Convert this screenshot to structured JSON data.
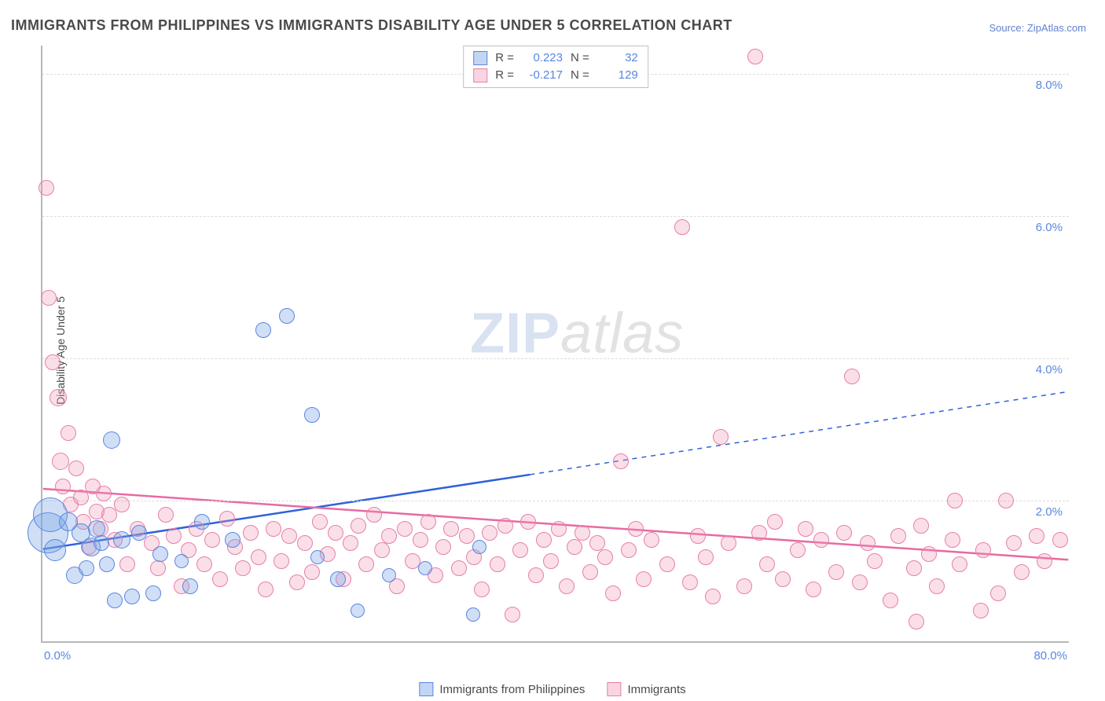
{
  "title": "IMMIGRANTS FROM PHILIPPINES VS IMMIGRANTS DISABILITY AGE UNDER 5 CORRELATION CHART",
  "source_prefix": "Source: ",
  "source": "ZipAtlas.com",
  "ylabel": "Disability Age Under 5",
  "watermark": {
    "a": "ZIP",
    "b": "atlas"
  },
  "chart": {
    "type": "scatter",
    "background_color": "#ffffff",
    "grid_color": "#dcdcdc",
    "axis_color": "#b8b8b8",
    "tick_color": "#5a86e0",
    "tick_fontsize": 15,
    "title_fontsize": 18,
    "xlim": [
      0,
      80
    ],
    "ylim": [
      0,
      8.4
    ],
    "xtick_labels": {
      "min": "0.0%",
      "max": "80.0%"
    },
    "ytick_labels": [
      "2.0%",
      "4.0%",
      "6.0%",
      "8.0%"
    ],
    "ytick_values": [
      2.0,
      4.0,
      6.0,
      8.0
    ],
    "series": [
      {
        "name": "Immigrants from Philippines",
        "color_fill": "rgba(120,164,230,0.35)",
        "color_stroke": "#5a86e0",
        "R": "0.223",
        "N": "32",
        "regression": {
          "x1": 0,
          "y1": 1.3,
          "x2_solid": 38,
          "y2_solid": 2.35,
          "x2_dash": 80,
          "y2_dash": 3.52,
          "stroke": "#2f62d9",
          "width": 2.5,
          "dash": "6 6"
        },
        "points": [
          {
            "x": 0.4,
            "y": 1.55,
            "r": 26
          },
          {
            "x": 0.6,
            "y": 1.8,
            "r": 22
          },
          {
            "x": 1.0,
            "y": 1.3,
            "r": 14
          },
          {
            "x": 2.0,
            "y": 1.7,
            "r": 12
          },
          {
            "x": 2.5,
            "y": 0.95,
            "r": 11
          },
          {
            "x": 3.0,
            "y": 1.55,
            "r": 12
          },
          {
            "x": 3.4,
            "y": 1.05,
            "r": 10
          },
          {
            "x": 3.8,
            "y": 1.35,
            "r": 12
          },
          {
            "x": 4.2,
            "y": 1.6,
            "r": 11
          },
          {
            "x": 4.6,
            "y": 1.4,
            "r": 10
          },
          {
            "x": 5.0,
            "y": 1.1,
            "r": 10
          },
          {
            "x": 5.4,
            "y": 2.85,
            "r": 11
          },
          {
            "x": 5.6,
            "y": 0.6,
            "r": 10
          },
          {
            "x": 6.2,
            "y": 1.45,
            "r": 11
          },
          {
            "x": 7.0,
            "y": 0.65,
            "r": 10
          },
          {
            "x": 7.5,
            "y": 1.55,
            "r": 10
          },
          {
            "x": 8.6,
            "y": 0.7,
            "r": 10
          },
          {
            "x": 9.2,
            "y": 1.25,
            "r": 10
          },
          {
            "x": 10.8,
            "y": 1.15,
            "r": 9
          },
          {
            "x": 11.5,
            "y": 0.8,
            "r": 10
          },
          {
            "x": 12.4,
            "y": 1.7,
            "r": 10
          },
          {
            "x": 14.8,
            "y": 1.45,
            "r": 10
          },
          {
            "x": 17.2,
            "y": 4.4,
            "r": 10
          },
          {
            "x": 19.0,
            "y": 4.6,
            "r": 10
          },
          {
            "x": 21.0,
            "y": 3.2,
            "r": 10
          },
          {
            "x": 21.4,
            "y": 1.2,
            "r": 9
          },
          {
            "x": 23.0,
            "y": 0.9,
            "r": 10
          },
          {
            "x": 24.5,
            "y": 0.45,
            "r": 9
          },
          {
            "x": 27.0,
            "y": 0.95,
            "r": 9
          },
          {
            "x": 29.8,
            "y": 1.05,
            "r": 9
          },
          {
            "x": 33.5,
            "y": 0.4,
            "r": 9
          },
          {
            "x": 34.0,
            "y": 1.35,
            "r": 9
          }
        ]
      },
      {
        "name": "Immigrants",
        "color_fill": "rgba(240,150,180,0.30)",
        "color_stroke": "#e77faa",
        "R": "-0.217",
        "N": "129",
        "regression": {
          "x1": 0,
          "y1": 2.15,
          "x2_solid": 80,
          "y2_solid": 1.15,
          "x2_dash": 80,
          "y2_dash": 1.15,
          "stroke": "#e86aa0",
          "width": 2.5,
          "dash": ""
        },
        "points": [
          {
            "x": 0.3,
            "y": 6.4,
            "r": 10
          },
          {
            "x": 0.5,
            "y": 4.85,
            "r": 10
          },
          {
            "x": 0.8,
            "y": 3.95,
            "r": 10
          },
          {
            "x": 1.2,
            "y": 3.45,
            "r": 11
          },
          {
            "x": 1.4,
            "y": 2.55,
            "r": 11
          },
          {
            "x": 1.6,
            "y": 2.2,
            "r": 10
          },
          {
            "x": 2.0,
            "y": 2.95,
            "r": 10
          },
          {
            "x": 2.2,
            "y": 1.95,
            "r": 10
          },
          {
            "x": 2.6,
            "y": 2.45,
            "r": 10
          },
          {
            "x": 3.0,
            "y": 2.05,
            "r": 10
          },
          {
            "x": 3.2,
            "y": 1.7,
            "r": 10
          },
          {
            "x": 3.6,
            "y": 1.35,
            "r": 10
          },
          {
            "x": 3.9,
            "y": 2.2,
            "r": 10
          },
          {
            "x": 4.2,
            "y": 1.85,
            "r": 10
          },
          {
            "x": 4.5,
            "y": 1.6,
            "r": 10
          },
          {
            "x": 4.8,
            "y": 2.1,
            "r": 10
          },
          {
            "x": 5.2,
            "y": 1.8,
            "r": 10
          },
          {
            "x": 5.6,
            "y": 1.45,
            "r": 10
          },
          {
            "x": 6.2,
            "y": 1.95,
            "r": 10
          },
          {
            "x": 6.6,
            "y": 1.1,
            "r": 10
          },
          {
            "x": 7.4,
            "y": 1.6,
            "r": 10
          },
          {
            "x": 8.5,
            "y": 1.4,
            "r": 10
          },
          {
            "x": 9.0,
            "y": 1.05,
            "r": 10
          },
          {
            "x": 9.6,
            "y": 1.8,
            "r": 10
          },
          {
            "x": 10.2,
            "y": 1.5,
            "r": 10
          },
          {
            "x": 10.8,
            "y": 0.8,
            "r": 10
          },
          {
            "x": 11.4,
            "y": 1.3,
            "r": 10
          },
          {
            "x": 12.0,
            "y": 1.6,
            "r": 10
          },
          {
            "x": 12.6,
            "y": 1.1,
            "r": 10
          },
          {
            "x": 13.2,
            "y": 1.45,
            "r": 10
          },
          {
            "x": 13.8,
            "y": 0.9,
            "r": 10
          },
          {
            "x": 14.4,
            "y": 1.75,
            "r": 10
          },
          {
            "x": 15.0,
            "y": 1.35,
            "r": 10
          },
          {
            "x": 15.6,
            "y": 1.05,
            "r": 10
          },
          {
            "x": 16.2,
            "y": 1.55,
            "r": 10
          },
          {
            "x": 16.8,
            "y": 1.2,
            "r": 10
          },
          {
            "x": 17.4,
            "y": 0.75,
            "r": 10
          },
          {
            "x": 18.0,
            "y": 1.6,
            "r": 10
          },
          {
            "x": 18.6,
            "y": 1.15,
            "r": 10
          },
          {
            "x": 19.2,
            "y": 1.5,
            "r": 10
          },
          {
            "x": 19.8,
            "y": 0.85,
            "r": 10
          },
          {
            "x": 20.4,
            "y": 1.4,
            "r": 10
          },
          {
            "x": 21.0,
            "y": 1.0,
            "r": 10
          },
          {
            "x": 21.6,
            "y": 1.7,
            "r": 10
          },
          {
            "x": 22.2,
            "y": 1.25,
            "r": 10
          },
          {
            "x": 22.8,
            "y": 1.55,
            "r": 10
          },
          {
            "x": 23.4,
            "y": 0.9,
            "r": 10
          },
          {
            "x": 24.0,
            "y": 1.4,
            "r": 10
          },
          {
            "x": 24.6,
            "y": 1.65,
            "r": 10
          },
          {
            "x": 25.2,
            "y": 1.1,
            "r": 10
          },
          {
            "x": 25.8,
            "y": 1.8,
            "r": 10
          },
          {
            "x": 26.4,
            "y": 1.3,
            "r": 10
          },
          {
            "x": 27.0,
            "y": 1.5,
            "r": 10
          },
          {
            "x": 27.6,
            "y": 0.8,
            "r": 10
          },
          {
            "x": 28.2,
            "y": 1.6,
            "r": 10
          },
          {
            "x": 28.8,
            "y": 1.15,
            "r": 10
          },
          {
            "x": 29.4,
            "y": 1.45,
            "r": 10
          },
          {
            "x": 30.0,
            "y": 1.7,
            "r": 10
          },
          {
            "x": 30.6,
            "y": 0.95,
            "r": 10
          },
          {
            "x": 31.2,
            "y": 1.35,
            "r": 10
          },
          {
            "x": 31.8,
            "y": 1.6,
            "r": 10
          },
          {
            "x": 32.4,
            "y": 1.05,
            "r": 10
          },
          {
            "x": 33.0,
            "y": 1.5,
            "r": 10
          },
          {
            "x": 33.6,
            "y": 1.2,
            "r": 10
          },
          {
            "x": 34.2,
            "y": 0.75,
            "r": 10
          },
          {
            "x": 34.8,
            "y": 1.55,
            "r": 10
          },
          {
            "x": 35.4,
            "y": 1.1,
            "r": 10
          },
          {
            "x": 36.0,
            "y": 1.65,
            "r": 10
          },
          {
            "x": 36.6,
            "y": 0.4,
            "r": 10
          },
          {
            "x": 37.2,
            "y": 1.3,
            "r": 10
          },
          {
            "x": 37.8,
            "y": 1.7,
            "r": 10
          },
          {
            "x": 38.4,
            "y": 0.95,
            "r": 10
          },
          {
            "x": 39.0,
            "y": 1.45,
            "r": 10
          },
          {
            "x": 39.6,
            "y": 1.15,
            "r": 10
          },
          {
            "x": 40.2,
            "y": 1.6,
            "r": 10
          },
          {
            "x": 40.8,
            "y": 0.8,
            "r": 10
          },
          {
            "x": 41.4,
            "y": 1.35,
            "r": 10
          },
          {
            "x": 42.0,
            "y": 1.55,
            "r": 10
          },
          {
            "x": 42.6,
            "y": 1.0,
            "r": 10
          },
          {
            "x": 43.2,
            "y": 1.4,
            "r": 10
          },
          {
            "x": 43.8,
            "y": 1.2,
            "r": 10
          },
          {
            "x": 44.4,
            "y": 0.7,
            "r": 10
          },
          {
            "x": 45.0,
            "y": 2.55,
            "r": 10
          },
          {
            "x": 45.6,
            "y": 1.3,
            "r": 10
          },
          {
            "x": 46.2,
            "y": 1.6,
            "r": 10
          },
          {
            "x": 46.8,
            "y": 0.9,
            "r": 10
          },
          {
            "x": 47.4,
            "y": 1.45,
            "r": 10
          },
          {
            "x": 48.6,
            "y": 1.1,
            "r": 10
          },
          {
            "x": 49.8,
            "y": 5.85,
            "r": 10
          },
          {
            "x": 50.4,
            "y": 0.85,
            "r": 10
          },
          {
            "x": 51.0,
            "y": 1.5,
            "r": 10
          },
          {
            "x": 51.6,
            "y": 1.2,
            "r": 10
          },
          {
            "x": 52.2,
            "y": 0.65,
            "r": 10
          },
          {
            "x": 52.8,
            "y": 2.9,
            "r": 10
          },
          {
            "x": 53.4,
            "y": 1.4,
            "r": 10
          },
          {
            "x": 54.6,
            "y": 0.8,
            "r": 10
          },
          {
            "x": 55.5,
            "y": 8.25,
            "r": 10
          },
          {
            "x": 55.8,
            "y": 1.55,
            "r": 10
          },
          {
            "x": 56.4,
            "y": 1.1,
            "r": 10
          },
          {
            "x": 57.0,
            "y": 1.7,
            "r": 10
          },
          {
            "x": 57.6,
            "y": 0.9,
            "r": 10
          },
          {
            "x": 58.8,
            "y": 1.3,
            "r": 10
          },
          {
            "x": 59.4,
            "y": 1.6,
            "r": 10
          },
          {
            "x": 60.0,
            "y": 0.75,
            "r": 10
          },
          {
            "x": 60.6,
            "y": 1.45,
            "r": 10
          },
          {
            "x": 61.8,
            "y": 1.0,
            "r": 10
          },
          {
            "x": 62.4,
            "y": 1.55,
            "r": 10
          },
          {
            "x": 63.0,
            "y": 3.75,
            "r": 10
          },
          {
            "x": 63.6,
            "y": 0.85,
            "r": 10
          },
          {
            "x": 64.2,
            "y": 1.4,
            "r": 10
          },
          {
            "x": 64.8,
            "y": 1.15,
            "r": 10
          },
          {
            "x": 66.0,
            "y": 0.6,
            "r": 10
          },
          {
            "x": 66.6,
            "y": 1.5,
            "r": 10
          },
          {
            "x": 67.8,
            "y": 1.05,
            "r": 10
          },
          {
            "x": 68.0,
            "y": 0.3,
            "r": 10
          },
          {
            "x": 68.4,
            "y": 1.65,
            "r": 10
          },
          {
            "x": 69.0,
            "y": 1.25,
            "r": 10
          },
          {
            "x": 69.6,
            "y": 0.8,
            "r": 10
          },
          {
            "x": 70.8,
            "y": 1.45,
            "r": 10
          },
          {
            "x": 71.0,
            "y": 2.0,
            "r": 10
          },
          {
            "x": 71.4,
            "y": 1.1,
            "r": 10
          },
          {
            "x": 73.0,
            "y": 0.45,
            "r": 10
          },
          {
            "x": 73.2,
            "y": 1.3,
            "r": 10
          },
          {
            "x": 74.4,
            "y": 0.7,
            "r": 10
          },
          {
            "x": 75.0,
            "y": 2.0,
            "r": 10
          },
          {
            "x": 75.6,
            "y": 1.4,
            "r": 10
          },
          {
            "x": 76.2,
            "y": 1.0,
            "r": 10
          },
          {
            "x": 77.4,
            "y": 1.5,
            "r": 10
          },
          {
            "x": 78.0,
            "y": 1.15,
            "r": 10
          },
          {
            "x": 79.2,
            "y": 1.45,
            "r": 10
          }
        ]
      }
    ]
  }
}
